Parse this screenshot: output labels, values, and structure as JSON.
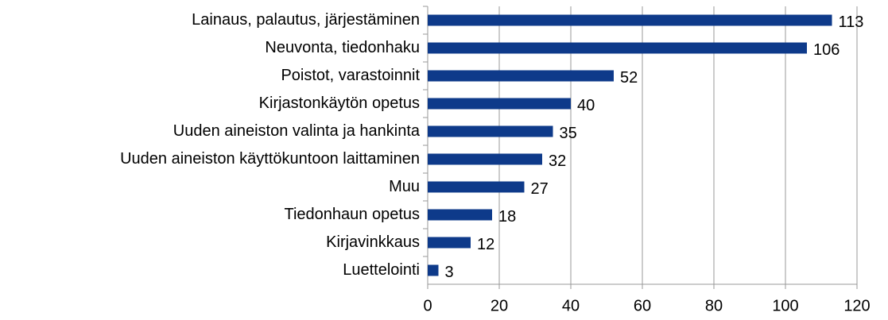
{
  "chart_data": {
    "type": "barh",
    "categories": [
      "Lainaus, palautus, järjestäminen",
      "Neuvonta, tiedonhaku",
      "Poistot, varastoinnit",
      "Kirjastonkäytön opetus",
      "Uuden aineiston valinta ja hankinta",
      "Uuden aineiston käyttökuntoon laittaminen",
      "Muu",
      "Tiedonhaun opetus",
      "Kirjavinkkaus",
      "Luettelointi"
    ],
    "values": [
      113,
      106,
      52,
      40,
      35,
      32,
      27,
      18,
      12,
      3
    ],
    "color": "#0e3a8a",
    "xlim": [
      0,
      120
    ],
    "xticks": [
      0,
      20,
      40,
      60,
      80,
      100,
      120
    ],
    "grid": true
  }
}
